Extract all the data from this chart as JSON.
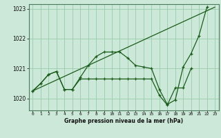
{
  "background_color": "#cce8d8",
  "grid_color": "#99ccaa",
  "line_color": "#1a5c1a",
  "xlabel": "Graphe pression niveau de la mer (hPa)",
  "ylim": [
    1019.6,
    1023.15
  ],
  "xlim": [
    -0.5,
    23.5
  ],
  "yticks": [
    1020,
    1021,
    1022,
    1023
  ],
  "xticks": [
    0,
    1,
    2,
    3,
    4,
    5,
    6,
    7,
    8,
    9,
    10,
    11,
    12,
    13,
    14,
    15,
    16,
    17,
    18,
    19,
    20,
    21,
    22,
    23
  ],
  "line_straight": {
    "x": [
      0,
      23
    ],
    "y": [
      1020.25,
      1023.05
    ]
  },
  "line_main": {
    "x": [
      0,
      1,
      2,
      3,
      4,
      5,
      6,
      7,
      8,
      9,
      10,
      11,
      12,
      13,
      14,
      15,
      16,
      17,
      18,
      19,
      20,
      21,
      22
    ],
    "y": [
      1020.25,
      1020.5,
      1020.8,
      1020.9,
      1020.3,
      1020.3,
      1020.7,
      1021.1,
      1021.4,
      1021.55,
      1021.55,
      1021.55,
      1021.35,
      1021.1,
      1021.05,
      1021.0,
      1020.3,
      1019.8,
      1019.95,
      1021.05,
      1021.5,
      1022.1,
      1023.05
    ]
  },
  "line_low": {
    "x": [
      0,
      1,
      2,
      3,
      4,
      5,
      6,
      7,
      8,
      9,
      10,
      11,
      12,
      13,
      14,
      15,
      16,
      17,
      18,
      19,
      20
    ],
    "y": [
      1020.25,
      1020.5,
      1020.8,
      1020.9,
      1020.3,
      1020.3,
      1020.65,
      1020.65,
      1020.65,
      1020.65,
      1020.65,
      1020.65,
      1020.65,
      1020.65,
      1020.65,
      1020.65,
      1020.1,
      1019.78,
      1020.35,
      1020.35,
      1021.0
    ]
  }
}
